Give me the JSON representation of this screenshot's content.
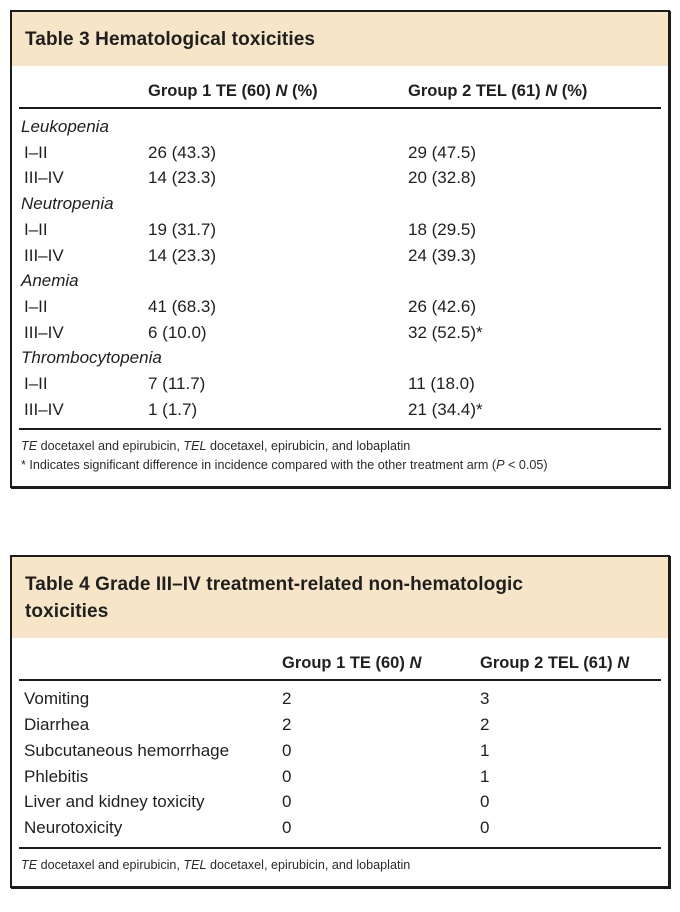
{
  "colors": {
    "header_bg": "#f7e5c8",
    "border": "#1b1b1b",
    "text": "#1f1f1f"
  },
  "table3": {
    "title": "Table 3 Hematological toxicities",
    "columns": [
      [
        {
          "t": "Group 1 TE (60) "
        },
        {
          "t": "N",
          "i": true
        },
        {
          "t": " (%)"
        }
      ],
      [
        {
          "t": "Group 2 TEL (61) "
        },
        {
          "t": "N",
          "i": true
        },
        {
          "t": " (%)"
        }
      ]
    ],
    "rows": [
      {
        "label": "Leukopenia",
        "italic": true,
        "c1": "",
        "c2": ""
      },
      {
        "label": "I–II",
        "c1": "26 (43.3)",
        "c2": "29 (47.5)"
      },
      {
        "label": "III–IV",
        "c1": "14 (23.3)",
        "c2": "20 (32.8)"
      },
      {
        "label": "Neutropenia",
        "italic": true,
        "c1": "",
        "c2": ""
      },
      {
        "label": "I–II",
        "c1": "19 (31.7)",
        "c2": "18 (29.5)"
      },
      {
        "label": "III–IV",
        "c1": "14 (23.3)",
        "c2": "24 (39.3)"
      },
      {
        "label": "Anemia",
        "italic": true,
        "c1": "",
        "c2": ""
      },
      {
        "label": "I–II",
        "c1": "41 (68.3)",
        "c2": "26 (42.6)"
      },
      {
        "label": "III–IV",
        "c1": "6 (10.0)",
        "c2": "32 (52.5)*"
      },
      {
        "label": "Thrombocytopenia",
        "italic": true,
        "c1": "",
        "c2": ""
      },
      {
        "label": "I–II",
        "c1": "7 (11.7)",
        "c2": "11 (18.0)"
      },
      {
        "label": "III–IV",
        "c1": "1 (1.7)",
        "c2": "21 (34.4)*"
      }
    ],
    "footnotes": [
      [
        {
          "t": "TE",
          "i": true
        },
        {
          "t": " docetaxel and epirubicin, "
        },
        {
          "t": "TEL",
          "i": true
        },
        {
          "t": " docetaxel, epirubicin, and lobaplatin"
        }
      ],
      [
        {
          "t": "* Indicates significant difference in incidence compared with the other treatment arm ("
        },
        {
          "t": "P",
          "i": true
        },
        {
          "t": " < 0.05)"
        }
      ]
    ]
  },
  "table4": {
    "title": "Table 4 Grade III–IV treatment-related non-hematologic toxicities",
    "columns": [
      [
        {
          "t": "Group 1 TE (60) "
        },
        {
          "t": "N",
          "i": true
        }
      ],
      [
        {
          "t": "Group 2 TEL (61) "
        },
        {
          "t": "N",
          "i": true
        }
      ]
    ],
    "rows": [
      {
        "label": "Vomiting",
        "c1": "2",
        "c2": "3"
      },
      {
        "label": "Diarrhea",
        "c1": "2",
        "c2": "2"
      },
      {
        "label": "Subcutaneous hemorrhage",
        "c1": "0",
        "c2": "1"
      },
      {
        "label": "Phlebitis",
        "c1": "0",
        "c2": "1"
      },
      {
        "label": "Liver and kidney toxicity",
        "c1": "0",
        "c2": "0"
      },
      {
        "label": "Neurotoxicity",
        "c1": "0",
        "c2": "0"
      }
    ],
    "footnotes": [
      [
        {
          "t": "TE",
          "i": true
        },
        {
          "t": " docetaxel and epirubicin, "
        },
        {
          "t": "TEL",
          "i": true
        },
        {
          "t": " docetaxel, epirubicin, and lobaplatin"
        }
      ]
    ]
  }
}
